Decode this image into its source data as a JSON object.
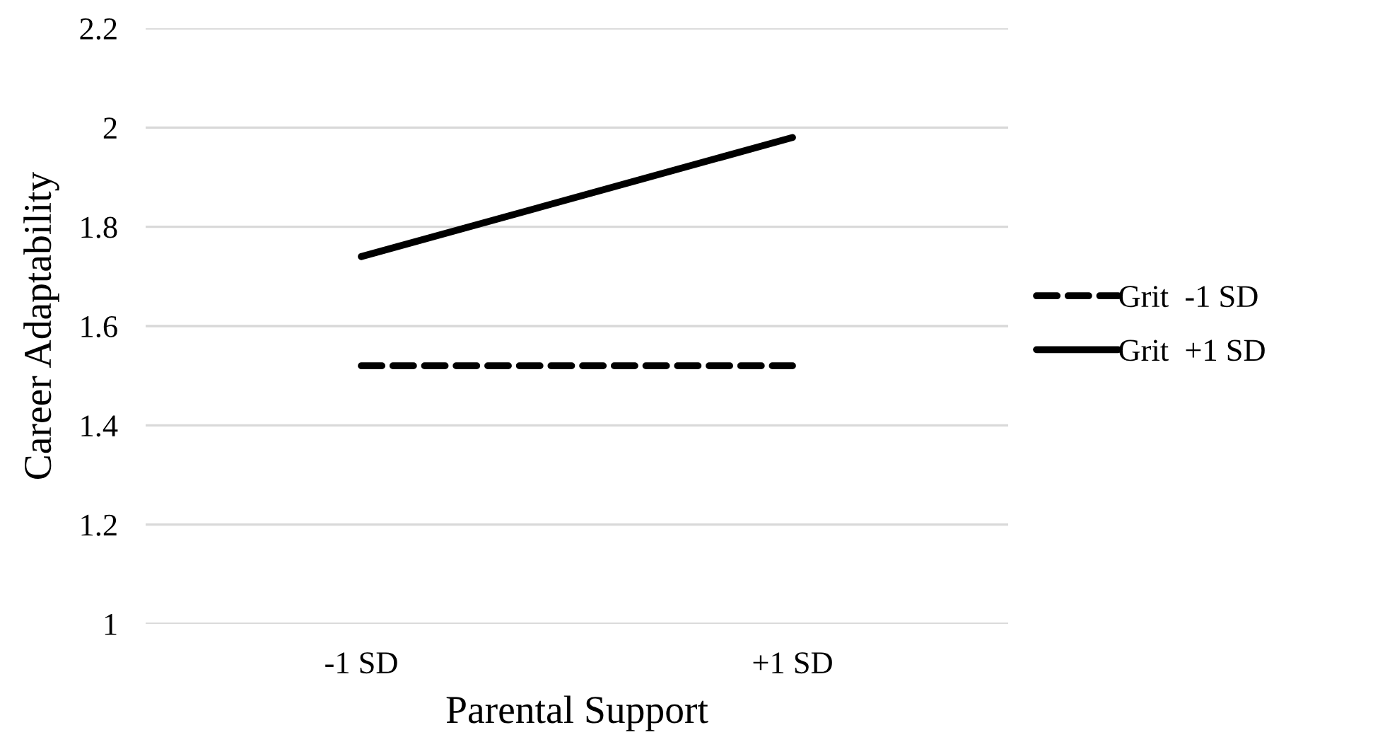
{
  "chart_data": {
    "type": "line",
    "xlabel": "Parental Support",
    "ylabel": "Career Adaptability",
    "categories": [
      "-1 SD",
      "+1 SD"
    ],
    "series": [
      {
        "name": "Grit  -1 SD",
        "color": "#000000",
        "line_style": "dashed",
        "values": [
          1.52,
          1.52
        ]
      },
      {
        "name": "Grit  +1 SD",
        "color": "#000000",
        "line_style": "solid",
        "values": [
          1.74,
          1.98
        ]
      }
    ],
    "ylim": [
      1,
      2.2
    ],
    "yticks": [
      1,
      1.2,
      1.4,
      1.6,
      1.8,
      2,
      2.2
    ],
    "grid": "y",
    "legend": "right",
    "marker": "none"
  }
}
